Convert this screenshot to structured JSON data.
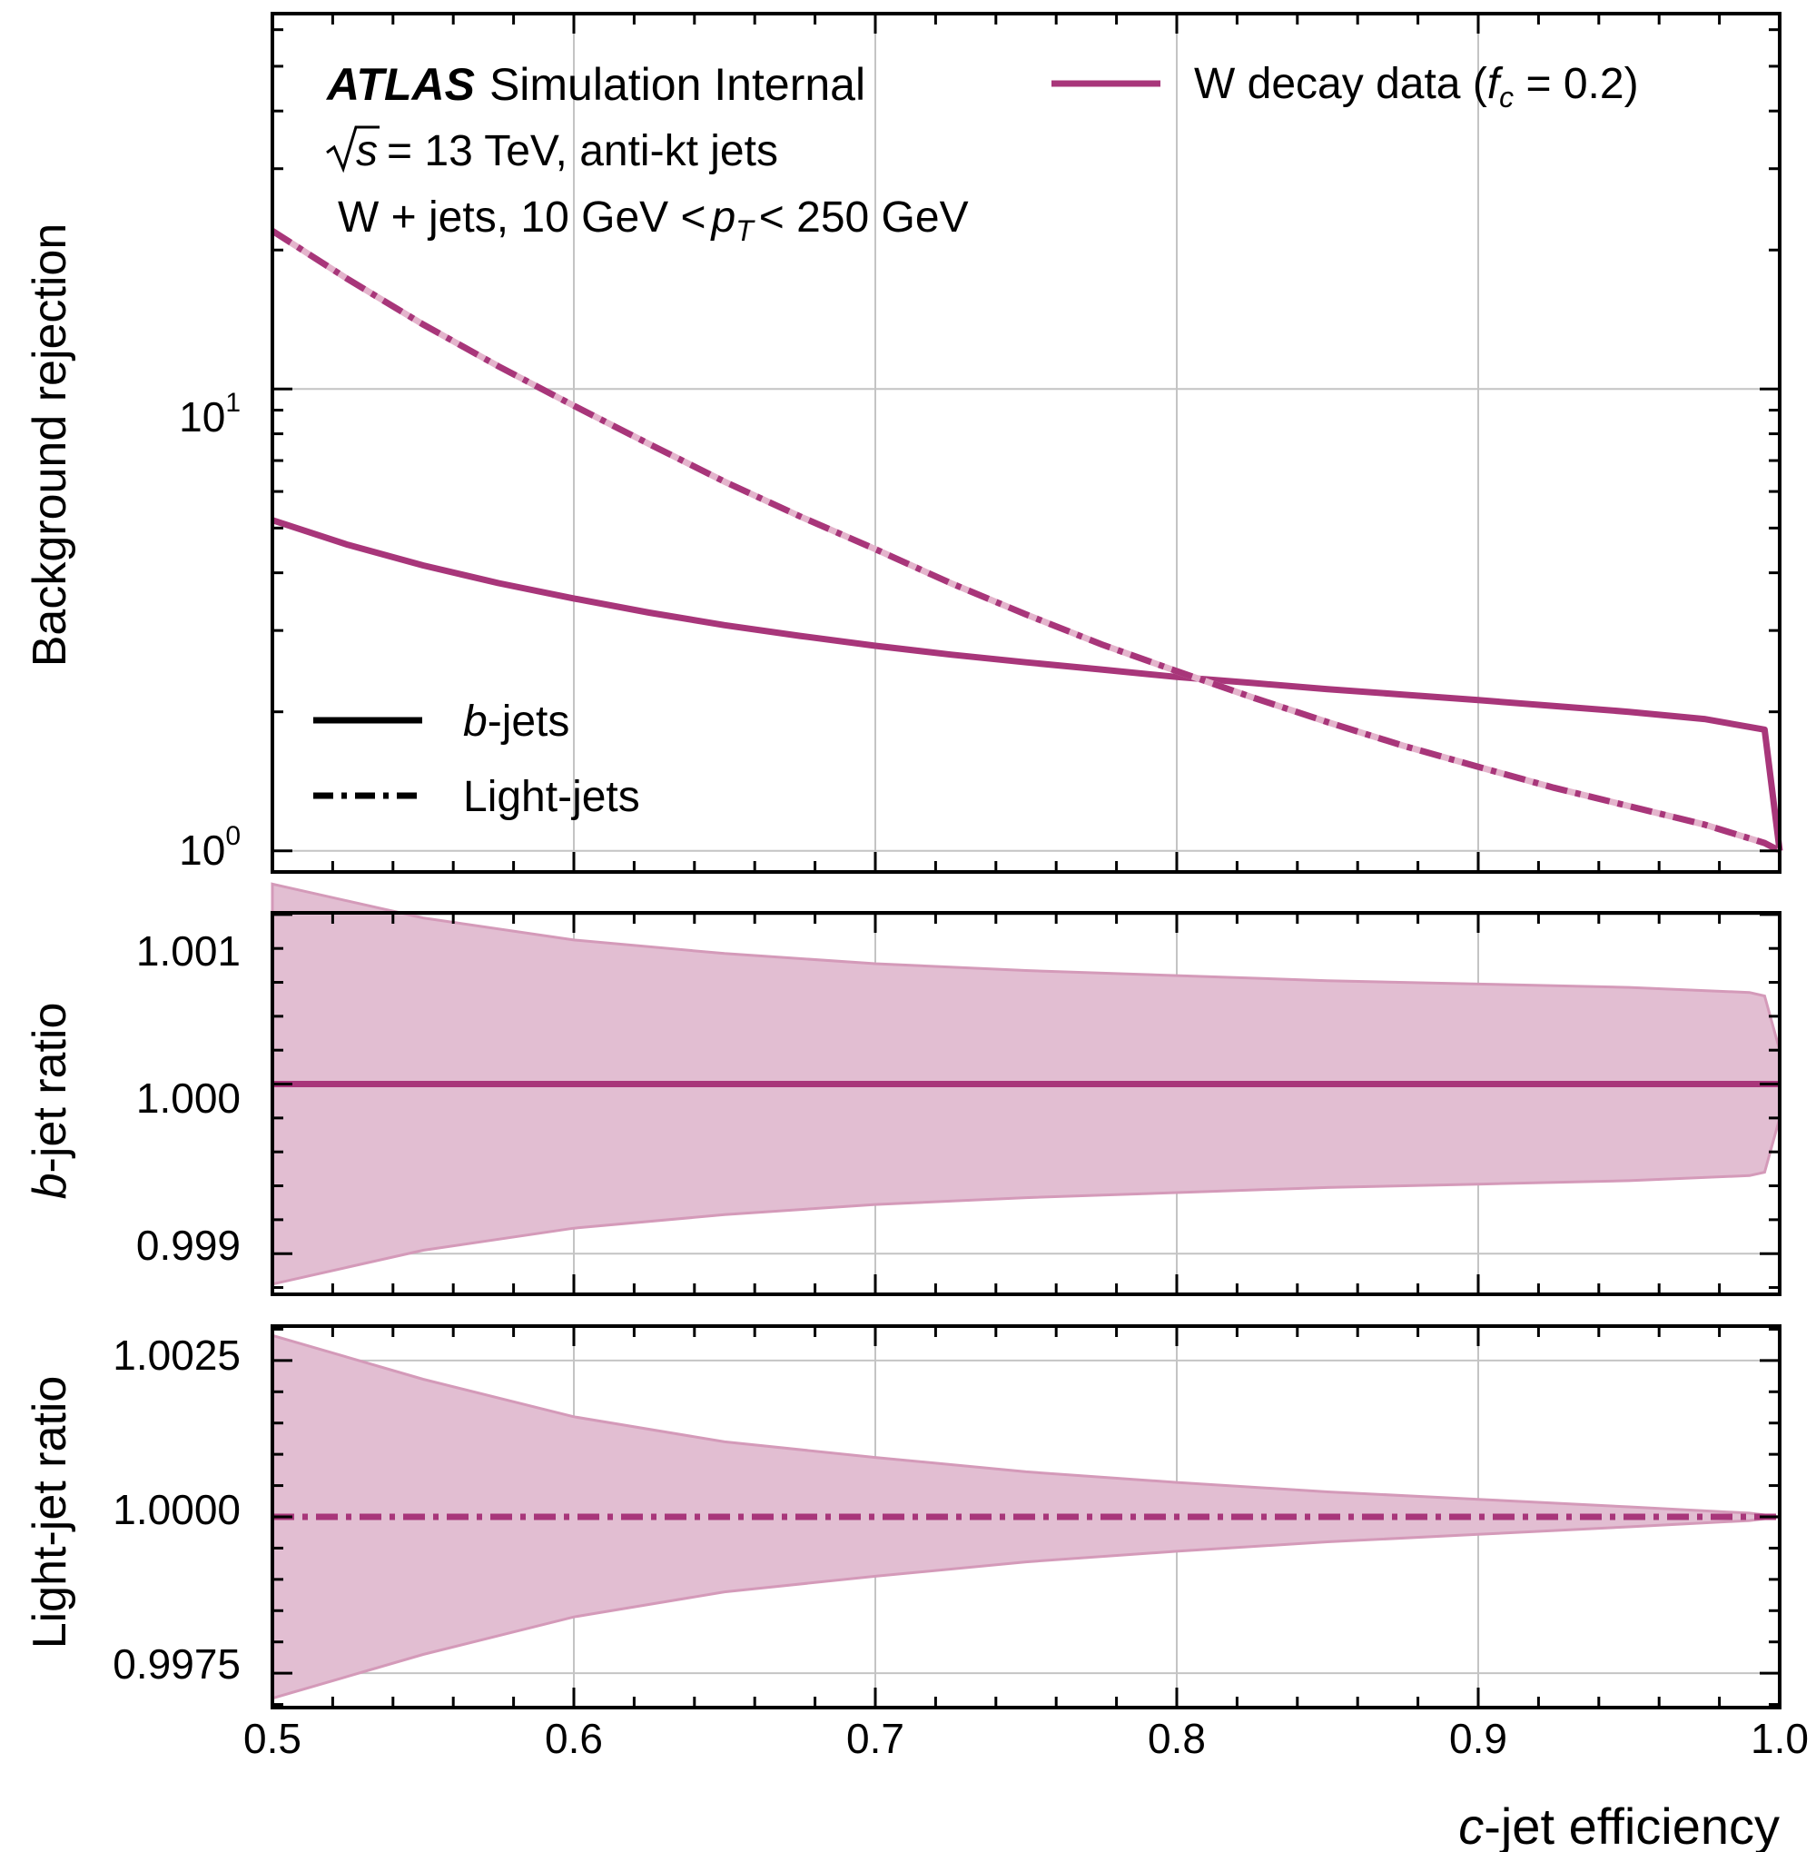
{
  "chart_data": [
    {
      "panel": "top",
      "type": "line",
      "ylabel": "Background rejection",
      "yscale": "log",
      "ylim": [
        0.9,
        65
      ],
      "xlim": [
        0.5,
        1.0
      ],
      "ytick_labels": [
        "10",
        "10"
      ],
      "ytick_exponents": [
        "1",
        "0"
      ],
      "grid": true,
      "annotations": {
        "atlas": "ATLAS",
        "status": "Simulation Internal",
        "sqrt_s": "s",
        "energy": "= 13 TeV, anti-kt jets",
        "sample_prefix": "W + jets, 10 GeV  <",
        "pt": "p",
        "pt_sub": "T",
        "sample_suffix": "< 250 GeV"
      },
      "legend_style": {
        "placement": "bottom-left",
        "entries": [
          {
            "label_italic": "b",
            "label_rest": "-jets",
            "style": "solid"
          },
          {
            "label": "Light-jets",
            "style": "dashdot"
          }
        ]
      },
      "legend_model": {
        "placement": "top-right",
        "label_prefix": "W decay data (",
        "label_f": "f",
        "label_sub": "c",
        "label_suffix": " = 0.2)",
        "color": "#a8367a"
      },
      "x": [
        0.5,
        0.525,
        0.55,
        0.575,
        0.6,
        0.625,
        0.65,
        0.675,
        0.7,
        0.725,
        0.75,
        0.775,
        0.8,
        0.825,
        0.85,
        0.875,
        0.9,
        0.925,
        0.95,
        0.975,
        0.995,
        1.0
      ],
      "series": [
        {
          "name": "b-jets",
          "style": "solid",
          "values": [
            5.2,
            4.6,
            4.15,
            3.8,
            3.52,
            3.28,
            3.08,
            2.92,
            2.78,
            2.66,
            2.56,
            2.47,
            2.38,
            2.31,
            2.24,
            2.18,
            2.12,
            2.06,
            2.0,
            1.93,
            1.83,
            1.0
          ]
        },
        {
          "name": "Light-jets",
          "style": "dashdot",
          "values": [
            22.0,
            17.3,
            13.8,
            11.2,
            9.2,
            7.6,
            6.3,
            5.3,
            4.5,
            3.8,
            3.25,
            2.8,
            2.45,
            2.15,
            1.9,
            1.69,
            1.52,
            1.37,
            1.25,
            1.14,
            1.04,
            1.0
          ]
        }
      ]
    },
    {
      "panel": "middle",
      "type": "area",
      "ylabel_italic": "b",
      "ylabel_rest": "-jet ratio",
      "ylim": [
        0.99876,
        1.00101
      ],
      "ytick_values": [
        1.001,
        1.0,
        0.999
      ],
      "ytick_labels": [
        "1.001",
        "1.000",
        "0.999"
      ],
      "xlim": [
        0.5,
        1.0
      ],
      "grid": true,
      "x": [
        0.5,
        0.55,
        0.6,
        0.65,
        0.7,
        0.75,
        0.8,
        0.85,
        0.9,
        0.95,
        0.99,
        0.995,
        1.0
      ],
      "central": [
        1.0,
        1.0,
        1.0,
        1.0,
        1.0,
        1.0,
        1.0,
        1.0,
        1.0,
        1.0,
        1.0,
        1.0,
        1.0
      ],
      "upper": [
        1.00118,
        1.00098,
        1.00085,
        1.00077,
        1.00071,
        1.00067,
        1.00064,
        1.00061,
        1.00059,
        1.00057,
        1.00054,
        1.00052,
        1.0002
      ],
      "lower": [
        0.99882,
        0.99902,
        0.99915,
        0.99923,
        0.99929,
        0.99933,
        0.99936,
        0.99939,
        0.99941,
        0.99943,
        0.99946,
        0.99948,
        0.9998
      ]
    },
    {
      "panel": "bottom",
      "type": "area",
      "ylabel": "Light-jet ratio",
      "ylim": [
        0.99968,
        1.00032
      ],
      "ytick_values": [
        1.0025,
        1.0,
        0.9975
      ],
      "ytick_labels": [
        "1.0025",
        "1.0000",
        "0.9975"
      ],
      "xlim": [
        0.5,
        1.0
      ],
      "xlabel_italic": "c",
      "xlabel_rest": "-jet efficiency",
      "xtick_labels": [
        "0.5",
        "0.6",
        "0.7",
        "0.8",
        "0.9",
        "1.0"
      ],
      "grid": true,
      "x": [
        0.5,
        0.55,
        0.6,
        0.65,
        0.7,
        0.75,
        0.8,
        0.85,
        0.9,
        0.95,
        0.99,
        1.0
      ],
      "central": [
        1.0,
        1.0,
        1.0,
        1.0,
        1.0,
        1.0,
        1.0,
        1.0,
        1.0,
        1.0,
        1.0,
        1.0
      ],
      "upper": [
        1.0029,
        1.0022,
        1.0016,
        1.0012,
        1.00095,
        1.00072,
        1.00055,
        1.0004,
        1.00028,
        1.00016,
        1.00006,
        1.0
      ],
      "lower": [
        0.9971,
        0.9978,
        0.9984,
        0.9988,
        0.99905,
        0.99928,
        0.99945,
        0.9996,
        0.99972,
        0.99984,
        0.99994,
        1.0
      ]
    }
  ]
}
